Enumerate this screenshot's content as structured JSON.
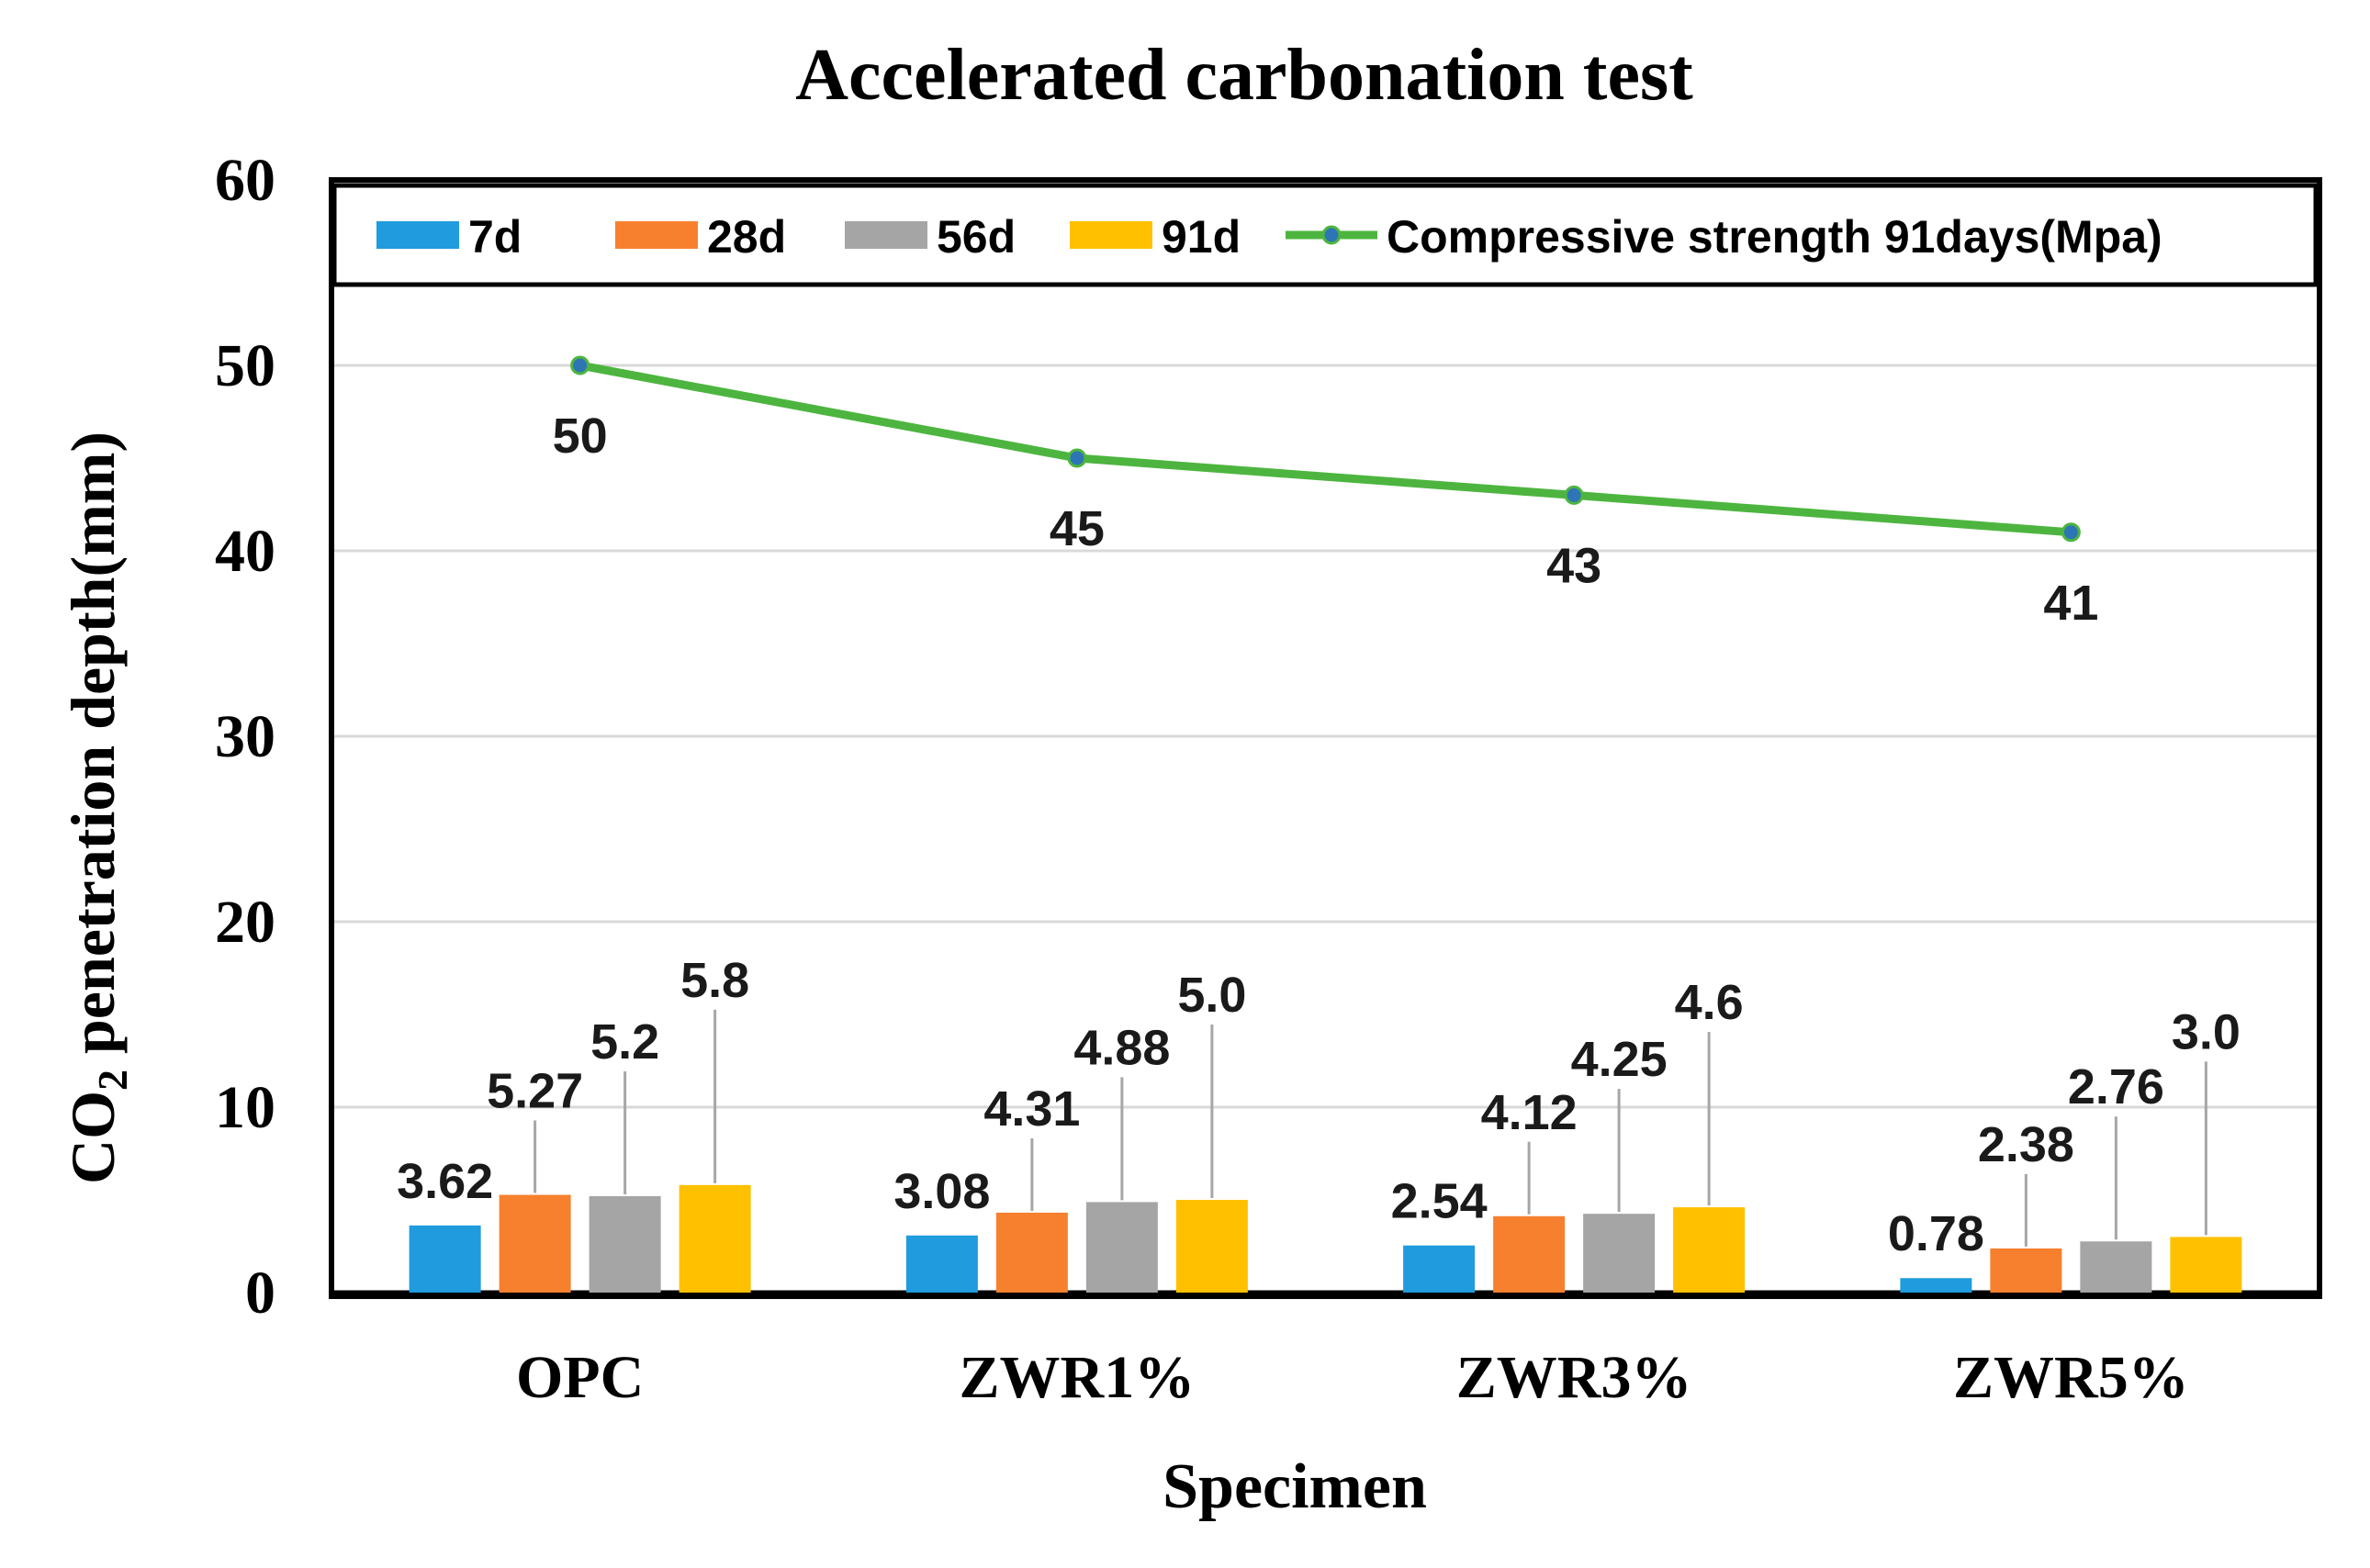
{
  "chart_data": {
    "type": "bar",
    "title": "Accelerated carbonation test",
    "xlabel": "Specimen",
    "ylabel_main": "CO",
    "ylabel_sub": "2",
    "ylabel_rest": " penetration depth(mm)",
    "ylim": [
      0,
      60
    ],
    "yticks": [
      0,
      10,
      20,
      30,
      40,
      50,
      60
    ],
    "ytick_labels": [
      "0",
      "10",
      "20",
      "30",
      "40",
      "50",
      "60"
    ],
    "grid": true,
    "legend_position": "top",
    "categories": [
      "OPC",
      "ZWR1%",
      "ZWR3%",
      "ZWR5%"
    ],
    "series": [
      {
        "name": "7d",
        "color": "#1F9BDE",
        "values": [
          3.62,
          3.08,
          2.54,
          0.78
        ],
        "labels": [
          "3.62",
          "3.08",
          "2.54",
          "0.78"
        ]
      },
      {
        "name": "28d",
        "color": "#F7802F",
        "values": [
          5.27,
          4.31,
          4.12,
          2.38
        ],
        "labels": [
          "5.27",
          "4.31",
          "4.12",
          "2.38"
        ]
      },
      {
        "name": "56d",
        "color": "#A5A5A5",
        "values": [
          5.2,
          4.88,
          4.25,
          2.76
        ],
        "labels": [
          "5.2",
          "4.88",
          "4.25",
          "2.76"
        ]
      },
      {
        "name": "91d",
        "color": "#FFC000",
        "values": [
          5.8,
          5.0,
          4.6,
          3.0
        ],
        "labels": [
          "5.8",
          "5.0",
          "4.6",
          "3.0"
        ]
      }
    ],
    "line_series": {
      "name": "Compressive strength 91days(Mpa)",
      "color": "#4DB53F",
      "marker_color": "#2E75B6",
      "values": [
        50,
        45,
        43,
        41
      ],
      "labels": [
        "50",
        "45",
        "43",
        "41"
      ]
    }
  }
}
